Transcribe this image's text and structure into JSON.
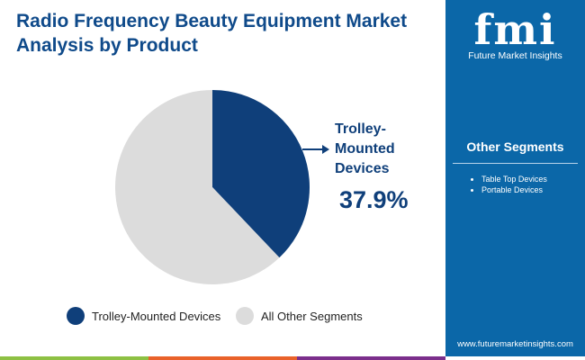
{
  "title": "Radio Frequency Beauty Equipment Market Analysis by Product",
  "logo": {
    "mark": "fmi",
    "name": "Future Market Insights"
  },
  "sidebar": {
    "heading": "Other Segments",
    "items": [
      "Table Top Devices",
      "Portable Devices"
    ],
    "url": "www.futuremarketinsights.com"
  },
  "colors": {
    "primary": "#0f3f7a",
    "other": "#dcdcdc",
    "sidebar": "#0b67a8",
    "bars": [
      "#8dc043",
      "#e9622a",
      "#7b2f8c"
    ]
  },
  "chart_data": {
    "type": "pie",
    "series": [
      {
        "name": "Trolley-Mounted Devices",
        "value": 37.9
      },
      {
        "name": "All Other Segments",
        "value": 62.1
      }
    ],
    "annotation": {
      "label": "Trolley-Mounted Devices",
      "value": "37.9%"
    },
    "legend": "bottom"
  },
  "callout": {
    "line1": "Trolley-",
    "line2": "Mounted",
    "line3": "Devices"
  }
}
